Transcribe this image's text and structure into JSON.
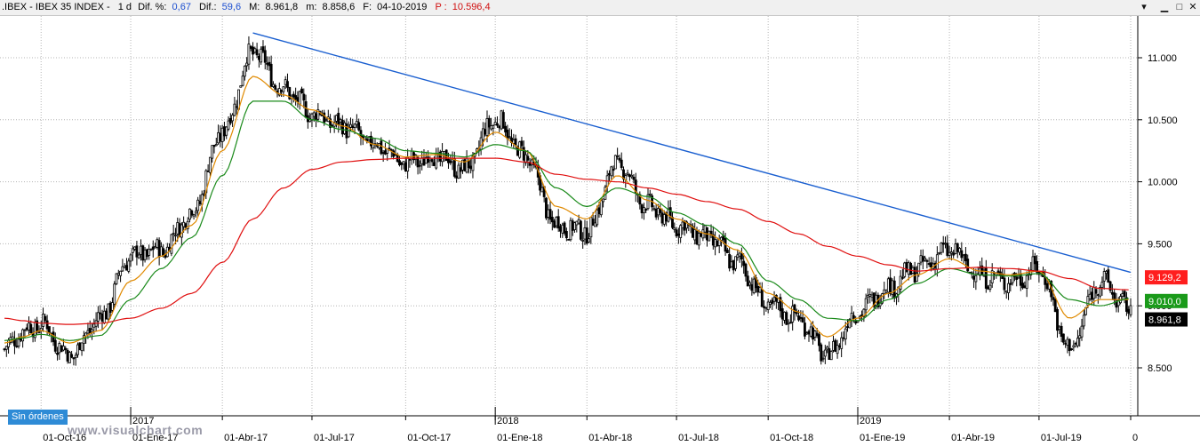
{
  "header": {
    "symbol": ".IBEX - IBEX 35 INDEX -",
    "period": "1 d",
    "dif_pct_label": "Dif. %:",
    "dif_pct_value": "0,67",
    "dif_label": "Dif.:",
    "dif_value": "59,6",
    "max_label": "M:",
    "max_value": "8.961,8",
    "min_label": "m:",
    "min_value": "8.858,6",
    "date_label": "F:",
    "date_value": "04-10-2019",
    "price_label": "P :",
    "price_value": "10.596,4"
  },
  "orders_badge": "Sin órdenes",
  "watermark": "www.visualchart.com",
  "colors": {
    "candles": "#000000",
    "ma_fast": "#e08a00",
    "ma_mid": "#1a8a1a",
    "ma_slow": "#e01010",
    "trendline": "#1a5fd0",
    "badge_red": "#ff1e1e",
    "badge_green": "#1a9a1a",
    "badge_black": "#000000"
  },
  "chart_data": {
    "type": "line",
    "title": "",
    "xlabel": "",
    "ylabel": "",
    "ylim": [
      8250,
      11300
    ],
    "y_ticks": [
      "11.000",
      "10.500",
      "10.000",
      "9.500",
      "9.000",
      "8.500"
    ],
    "y_tick_values": [
      11000,
      10500,
      10000,
      9500,
      9000,
      8500
    ],
    "x_ticks": [
      "01-Oct-16",
      "01-Ene-17",
      "01-Abr-17",
      "01-Jul-17",
      "01-Oct-17",
      "01-Ene-18",
      "01-Abr-18",
      "01-Jul-18",
      "01-Oct-18",
      "01-Ene-19",
      "01-Abr-19",
      "01-Jul-19",
      "0"
    ],
    "x_tick_index": [
      18,
      62,
      107,
      151,
      197,
      241,
      286,
      330,
      375,
      419,
      464,
      508,
      553
    ],
    "year_labels": [
      "2017",
      "2018",
      "2019"
    ],
    "year_label_index": [
      62,
      241,
      419
    ],
    "x": [
      "2016-08",
      "2016-09",
      "2016-10",
      "2016-11",
      "2016-12",
      "2017-01",
      "2017-02",
      "2017-03",
      "2017-04",
      "2017-05",
      "2017-06",
      "2017-07",
      "2017-08",
      "2017-09",
      "2017-10",
      "2017-11",
      "2017-12",
      "2018-01",
      "2018-02",
      "2018-03",
      "2018-04",
      "2018-05",
      "2018-06",
      "2018-07",
      "2018-08",
      "2018-09",
      "2018-10",
      "2018-11",
      "2018-12",
      "2019-01",
      "2019-02",
      "2019-03",
      "2019-04",
      "2019-05",
      "2019-06",
      "2019-07",
      "2019-08",
      "2019-09",
      "2019-10"
    ],
    "x_index": [
      0,
      9,
      18,
      32,
      47,
      62,
      77,
      92,
      107,
      122,
      137,
      151,
      166,
      182,
      197,
      212,
      226,
      241,
      256,
      271,
      286,
      301,
      316,
      330,
      345,
      360,
      375,
      390,
      404,
      419,
      434,
      448,
      464,
      479,
      494,
      508,
      523,
      538,
      553
    ],
    "series": [
      {
        "name": "",
        "style": "price",
        "values": [
          8650,
          8800,
          8850,
          8600,
          8900,
          9400,
          9450,
          9750,
          10400,
          11050,
          10750,
          10550,
          10450,
          10300,
          10150,
          10200,
          10100,
          10500,
          10200,
          9650,
          9600,
          10150,
          9800,
          9650,
          9550,
          9350,
          9000,
          8900,
          8600,
          8950,
          9150,
          9300,
          9450,
          9250,
          9200,
          9300,
          8650,
          9200,
          8960
        ]
      },
      {
        "name": "",
        "style": "ma_fast",
        "values": [
          8700,
          8750,
          8800,
          8700,
          8800,
          9200,
          9400,
          9650,
          10250,
          10850,
          10700,
          10580,
          10450,
          10300,
          10200,
          10220,
          10160,
          10400,
          10250,
          9800,
          9700,
          10050,
          9850,
          9700,
          9580,
          9450,
          9100,
          8950,
          8750,
          8900,
          9100,
          9250,
          9380,
          9280,
          9250,
          9280,
          8900,
          9050,
          9050
        ]
      },
      {
        "name": "",
        "style": "ma_mid",
        "values": [
          8720,
          8740,
          8770,
          8720,
          8760,
          9050,
          9300,
          9550,
          10050,
          10650,
          10650,
          10500,
          10420,
          10350,
          10250,
          10230,
          10200,
          10300,
          10250,
          9950,
          9800,
          9950,
          9880,
          9750,
          9650,
          9500,
          9200,
          9050,
          8900,
          8880,
          9050,
          9180,
          9300,
          9250,
          9240,
          9260,
          9050,
          9000,
          9060
        ]
      },
      {
        "name": "",
        "style": "ma_slow",
        "values": [
          8900,
          8880,
          8860,
          8850,
          8860,
          8900,
          8980,
          9100,
          9350,
          9700,
          9950,
          10100,
          10160,
          10180,
          10190,
          10190,
          10190,
          10190,
          10160,
          10060,
          10020,
          10000,
          9950,
          9900,
          9840,
          9780,
          9680,
          9580,
          9480,
          9400,
          9330,
          9280,
          9300,
          9310,
          9300,
          9280,
          9220,
          9140,
          9129
        ]
      }
    ],
    "trendline": {
      "x": [
        "2017-05",
        "2019-10"
      ],
      "x_index": [
        122,
        553
      ],
      "values": [
        11200,
        9270
      ]
    },
    "last_values": [
      "9.129,2",
      "9.010,0",
      "8.961,8"
    ],
    "last_value_numbers": [
      9129.2,
      9010,
      8961.8
    ],
    "grid": true,
    "legend": "none"
  }
}
